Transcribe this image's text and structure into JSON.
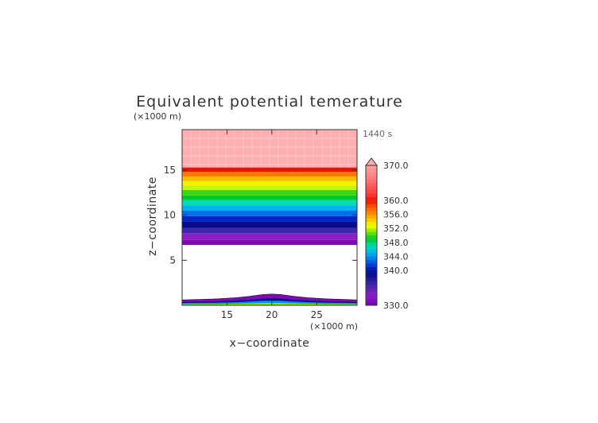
{
  "chart_data": {
    "type": "heatmap",
    "title": "Equivalent potential temerature",
    "xlabel": "x−coordinate",
    "ylabel": "z−coordinate",
    "x_unit": "(×1000 m)",
    "y_unit": "(×1000 m)",
    "time_label": "1440 s",
    "xlim": [
      10,
      29.5
    ],
    "ylim": [
      0,
      19.5
    ],
    "x_ticks": [
      15,
      20,
      25
    ],
    "y_ticks": [
      5,
      10,
      15
    ],
    "grid": false,
    "colorbar": {
      "min": 330,
      "max": 370,
      "labels": [
        "370.0",
        "360.0",
        "356.0",
        "352.0",
        "348.0",
        "344.0",
        "340.0",
        "330.0"
      ],
      "label_values": [
        370,
        360,
        356,
        352,
        348,
        344,
        340,
        330
      ],
      "extend": "max"
    },
    "layers": [
      {
        "z0": 6.7,
        "z1": 7.3,
        "value": 331
      },
      {
        "z0": 7.3,
        "z1": 8.0,
        "value": 333
      },
      {
        "z0": 8.0,
        "z1": 8.6,
        "value": 336
      },
      {
        "z0": 8.6,
        "z1": 9.3,
        "value": 339
      },
      {
        "z0": 9.3,
        "z1": 9.9,
        "value": 341
      },
      {
        "z0": 9.9,
        "z1": 10.5,
        "value": 343
      },
      {
        "z0": 10.5,
        "z1": 11.1,
        "value": 345
      },
      {
        "z0": 11.1,
        "z1": 11.7,
        "value": 347
      },
      {
        "z0": 11.7,
        "z1": 12.2,
        "value": 349
      },
      {
        "z0": 12.2,
        "z1": 12.8,
        "value": 350
      },
      {
        "z0": 12.8,
        "z1": 13.3,
        "value": 352
      },
      {
        "z0": 13.3,
        "z1": 13.8,
        "value": 353
      },
      {
        "z0": 13.8,
        "z1": 14.3,
        "value": 355
      },
      {
        "z0": 14.3,
        "z1": 14.8,
        "value": 357
      },
      {
        "z0": 14.8,
        "z1": 15.3,
        "value": 360
      },
      {
        "z0": 15.3,
        "z1": 19.5,
        "value": 371
      }
    ],
    "surface_profile": {
      "x": [
        10,
        12,
        14,
        16,
        17.5,
        19,
        20,
        21,
        22.5,
        24,
        26,
        28,
        29.5
      ],
      "top": [
        0.6,
        0.65,
        0.72,
        0.85,
        1.0,
        1.2,
        1.25,
        1.2,
        1.0,
        0.85,
        0.72,
        0.65,
        0.6
      ],
      "bands": [
        {
          "frac": 1.0,
          "value": 331
        },
        {
          "frac": 0.62,
          "value": 339
        },
        {
          "frac": 0.42,
          "value": 344
        },
        {
          "frac": 0.22,
          "value": 351
        }
      ]
    }
  }
}
